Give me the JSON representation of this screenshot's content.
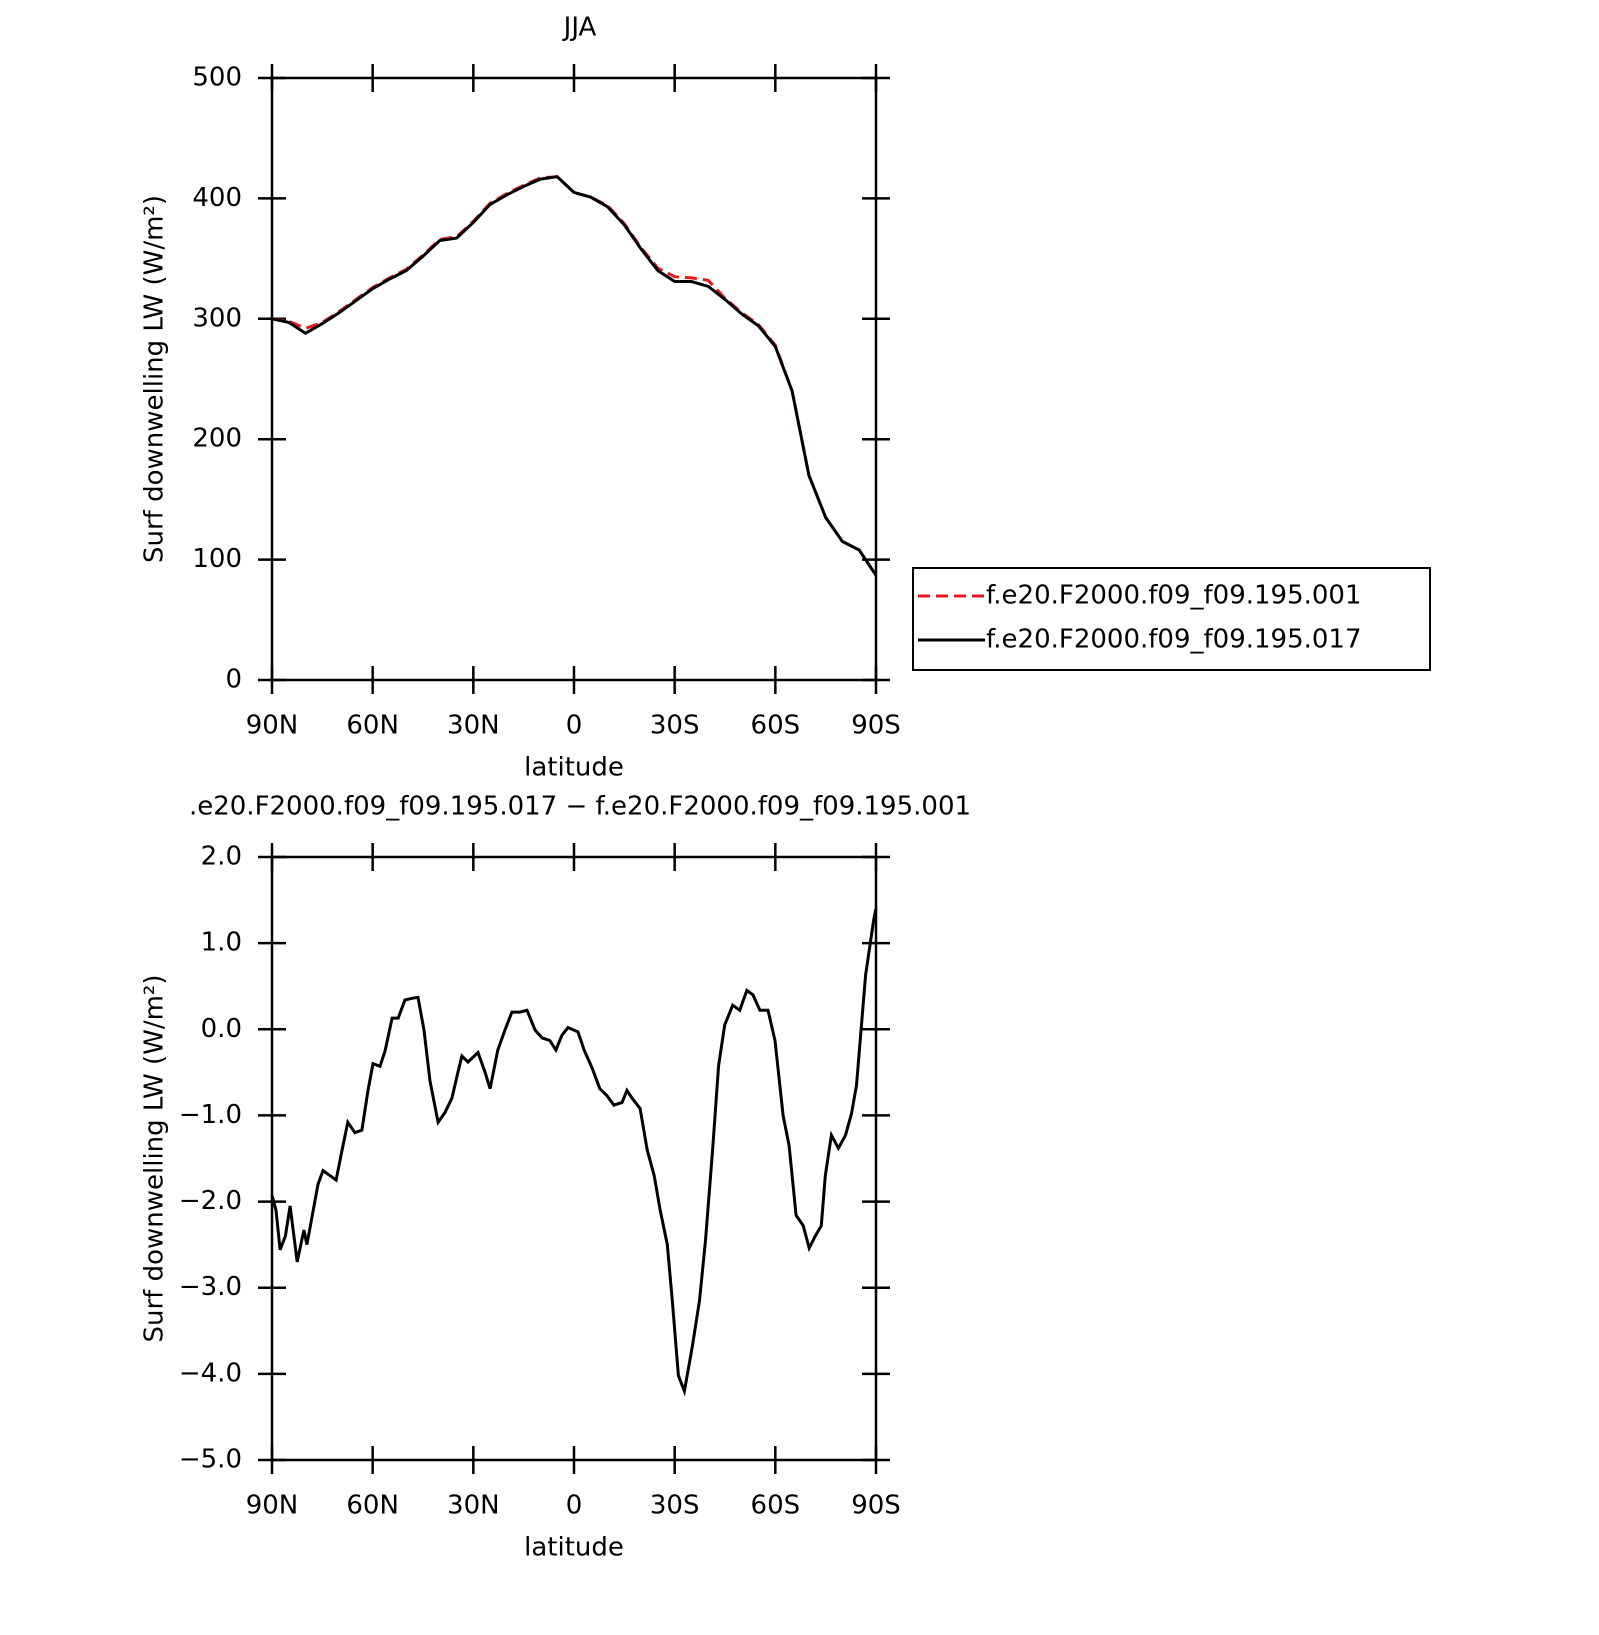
{
  "chart_data": [
    {
      "type": "line",
      "title": "JJA",
      "xlabel": "latitude",
      "ylabel": "Surf downwelling LW (W/m²)",
      "x": [
        90,
        85,
        80,
        75,
        70,
        65,
        60,
        55,
        50,
        45,
        40,
        35,
        30,
        25,
        20,
        15,
        10,
        5,
        0,
        -5,
        -10,
        -15,
        -20,
        -25,
        -30,
        -35,
        -40,
        -45,
        -50,
        -55,
        -60,
        -65,
        -70,
        -75,
        -80,
        -85,
        -90
      ],
      "series": [
        {
          "name": "f.e20.F2000.f09_f09.195.001",
          "color": "#e41a1c",
          "line_style": "dashed",
          "values": [
            300,
            298,
            292,
            297,
            306,
            316,
            326,
            334,
            341,
            353,
            366,
            368,
            381,
            396,
            404,
            411,
            417,
            418,
            405,
            401,
            394,
            379,
            359,
            342,
            335,
            334,
            332,
            317,
            305,
            295,
            278,
            240,
            170,
            135,
            115,
            108,
            87
          ]
        },
        {
          "name": "f.e20.F2000.f09_f09.195.017",
          "color": "#000000",
          "line_style": "solid",
          "values": [
            300,
            297,
            288,
            296,
            305,
            315,
            325,
            333,
            340,
            352,
            365,
            367,
            380,
            395,
            403,
            410,
            416,
            418,
            405,
            401,
            393,
            378,
            358,
            340,
            331,
            331,
            327,
            316,
            304,
            294,
            277,
            240,
            170,
            135,
            115,
            108,
            87
          ]
        }
      ],
      "xlim": [
        90,
        -90
      ],
      "ylim": [
        0,
        500
      ],
      "xticks": [
        {
          "value": 90,
          "label": "90N"
        },
        {
          "value": 60,
          "label": "60N"
        },
        {
          "value": 30,
          "label": "30N"
        },
        0,
        {
          "value": -30,
          "label": "30S"
        },
        {
          "value": -60,
          "label": "60S"
        },
        {
          "value": -90,
          "label": "90S"
        }
      ],
      "yticks": [
        0,
        100,
        200,
        300,
        400,
        500
      ],
      "legend": "outside-right"
    },
    {
      "type": "line",
      "title": ".e20.F2000.f09_f09.195.017 − f.e20.F2000.f09_f09.195.001",
      "xlabel": "latitude",
      "ylabel": "Surf downwelling LW (W/m²)",
      "x": [
        90,
        88.8,
        87.6,
        86,
        84.6,
        82.5,
        80.5,
        79.6,
        78,
        76.3,
        74.8,
        72.7,
        70.9,
        69.1,
        67.4,
        65.3,
        63.2,
        61.4,
        59.9,
        57.8,
        56.3,
        54.2,
        52.4,
        50.4,
        48.3,
        46.5,
        44.7,
        42.9,
        40.5,
        38.5,
        36.4,
        34.6,
        33.4,
        31.6,
        28.6,
        26.5,
        25,
        22.7,
        20.6,
        18.5,
        16.1,
        14,
        11.6,
        9.5,
        7.2,
        5.4,
        3.6,
        1.8,
        -1.2,
        -3,
        -5.4,
        -7.7,
        -9.8,
        -11.9,
        -14.3,
        -15.8,
        -17.3,
        -19.7,
        -21.8,
        -23.9,
        -25.7,
        -27.8,
        -29.3,
        -31.1,
        -32.9,
        -35.3,
        -37.4,
        -39.2,
        -41.3,
        -43.1,
        -44.9,
        -47.3,
        -49.4,
        -51.5,
        -53.3,
        -55.4,
        -57.8,
        -59.9,
        -62.3,
        -64.1,
        -66.2,
        -68.3,
        -70.1,
        -71.9,
        -73.7,
        -74.9,
        -76.7,
        -78.8,
        -80.9,
        -82.7,
        -84.2,
        -86.9,
        -89.3,
        -90
      ],
      "series": [
        {
          "color": "#000000",
          "line_style": "solid",
          "values": [
            -1.93,
            -2.1,
            -2.56,
            -2.4,
            -2.05,
            -2.7,
            -2.33,
            -2.5,
            -2.16,
            -1.8,
            -1.64,
            -1.7,
            -1.75,
            -1.4,
            -1.08,
            -1.2,
            -1.17,
            -0.71,
            -0.4,
            -0.43,
            -0.25,
            0.13,
            0.13,
            0.34,
            0.36,
            0.37,
            -0.01,
            -0.6,
            -1.08,
            -0.97,
            -0.8,
            -0.5,
            -0.31,
            -0.38,
            -0.27,
            -0.5,
            -0.69,
            -0.24,
            -0.01,
            0.2,
            0.2,
            0.22,
            -0.01,
            -0.1,
            -0.13,
            -0.24,
            -0.07,
            0.02,
            -0.03,
            -0.24,
            -0.45,
            -0.69,
            -0.77,
            -0.88,
            -0.85,
            -0.71,
            -0.8,
            -0.92,
            -1.4,
            -1.7,
            -2.1,
            -2.5,
            -3.15,
            -4.02,
            -4.2,
            -3.67,
            -3.15,
            -2.45,
            -1.4,
            -0.42,
            0.05,
            0.28,
            0.22,
            0.45,
            0.4,
            0.22,
            0.22,
            -0.13,
            -1.0,
            -1.35,
            -2.16,
            -2.28,
            -2.54,
            -2.4,
            -2.28,
            -1.7,
            -1.23,
            -1.38,
            -1.23,
            -0.98,
            -0.65,
            0.63,
            1.27,
            1.4
          ]
        }
      ],
      "xlim": [
        90,
        -90
      ],
      "ylim": [
        -5,
        2
      ],
      "xticks": [
        {
          "value": 90,
          "label": "90N"
        },
        {
          "value": 60,
          "label": "60N"
        },
        {
          "value": 30,
          "label": "30N"
        },
        0,
        {
          "value": -30,
          "label": "30S"
        },
        {
          "value": -60,
          "label": "60S"
        },
        {
          "value": -90,
          "label": "90S"
        }
      ],
      "yticks": [
        {
          "value": -5,
          "label": "−5.0"
        },
        {
          "value": -4,
          "label": "−4.0"
        },
        {
          "value": -3,
          "label": "−3.0"
        },
        {
          "value": -2,
          "label": "−2.0"
        },
        {
          "value": -1,
          "label": "−1.0"
        },
        {
          "value": 0,
          "label": "0.0"
        },
        {
          "value": 1,
          "label": "1.0"
        },
        {
          "value": 2,
          "label": "2.0"
        }
      ]
    }
  ]
}
